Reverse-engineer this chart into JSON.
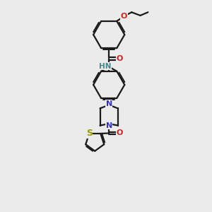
{
  "background_color": "#ebebeb",
  "bond_color": "#1a1a1a",
  "atom_colors": {
    "N": "#3333cc",
    "O": "#cc2222",
    "S": "#999900",
    "H": "#448888",
    "C": "#1a1a1a"
  },
  "figsize": [
    3.0,
    3.0
  ],
  "dpi": 100,
  "xlim": [
    0,
    10
  ],
  "ylim": [
    0,
    14
  ]
}
